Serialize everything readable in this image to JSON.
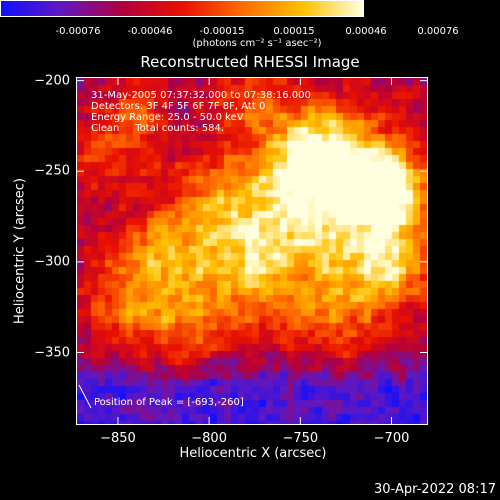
{
  "colorbar": {
    "ticks": [
      "-0.00076",
      "-0.00046",
      "-0.00015",
      "0.00015",
      "0.00046",
      "0.00076"
    ],
    "units": "(photons cm⁻² s⁻¹ asec⁻²)"
  },
  "annotation": {
    "time": "31-May-2005 07:37:32.000 to 07:38:16.000",
    "detectors": "Detectors: 3F 4F 5F 6F 7F 8F, Att 0",
    "energy": "Energy Range: 25.0 - 50.0 keV",
    "method": "Clean     Total counts: 584.",
    "peak": "Position of Peak = [-693,-260]"
  },
  "footer": {
    "timestamp": "30-Apr-2022 08:17"
  },
  "chart_data": {
    "type": "heatmap",
    "title": "Reconstructed RHESSI Image",
    "xlabel": "Heliocentric X (arcsec)",
    "ylabel": "Heliocentric Y (arcsec)",
    "xlim": [
      -873,
      -680
    ],
    "ylim": [
      -390,
      -198
    ],
    "xticks": [
      -850,
      -800,
      -750,
      -700
    ],
    "yticks": [
      -200,
      -250,
      -300,
      -350
    ],
    "zlim": [
      -0.00076,
      0.00076
    ],
    "colormap": [
      "#1010ff",
      "#6018c0",
      "#b00040",
      "#e81000",
      "#ff6a00",
      "#ffc000",
      "#ffffe0"
    ],
    "peak_position": [
      -693,
      -260
    ],
    "grid": false
  }
}
